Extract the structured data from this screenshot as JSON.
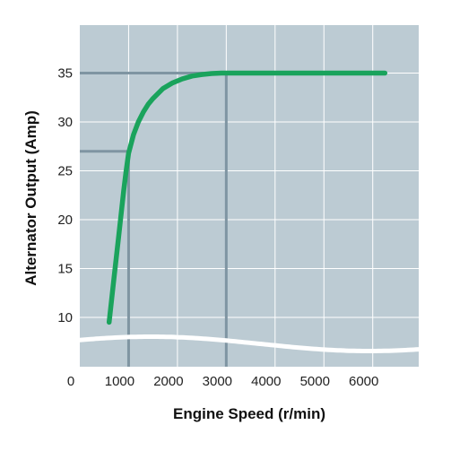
{
  "chart_data": {
    "type": "line",
    "xlabel": "Engine Speed (r/min)",
    "ylabel": "Alternator Output (Amp)",
    "x_ticks": [
      "0",
      "1000",
      "2000",
      "3000",
      "4000",
      "5000",
      "6000"
    ],
    "y_ticks": [
      "10",
      "15",
      "20",
      "25",
      "30",
      "35"
    ],
    "xlim": [
      0,
      7000
    ],
    "ylim": [
      5,
      39.5
    ],
    "grid": true,
    "axis_break": "wavy white band near bottom (y-axis break below 10)",
    "series": [
      {
        "x": [
          600,
          700,
          800,
          900,
          950,
          1000,
          1100,
          1200,
          1300,
          1400,
          1500,
          1700,
          1900,
          2100,
          2300,
          2500,
          2700,
          2900,
          3000,
          3500,
          4000,
          4500,
          5000,
          5500,
          6000,
          6250
        ],
        "y": [
          9.5,
          14.0,
          18.5,
          23.0,
          25.0,
          26.8,
          28.7,
          30.0,
          31.0,
          31.8,
          32.4,
          33.4,
          34.0,
          34.4,
          34.7,
          34.85,
          34.95,
          35.0,
          35.0,
          35.0,
          35.0,
          35.0,
          35.0,
          35.0,
          35.0,
          35.0
        ]
      }
    ],
    "reference_lines": [
      {
        "x": 1000,
        "y": 27
      },
      {
        "x": 3000,
        "y": 35
      }
    ],
    "colors": {
      "plot_background": "#bccbd3",
      "grid": "#ffffff",
      "reference_line": "#7f95a2",
      "series": "#1aa35c"
    }
  }
}
